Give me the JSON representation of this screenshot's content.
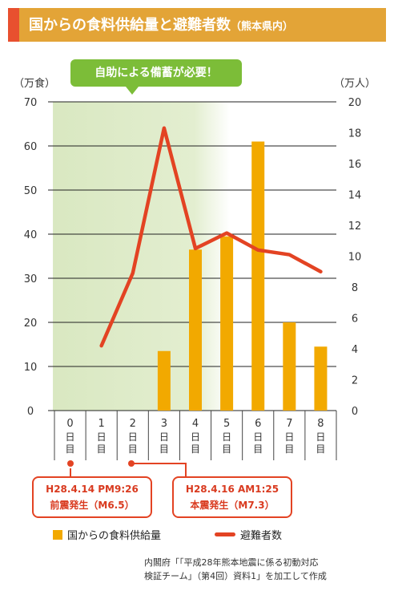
{
  "header": {
    "title": "国からの食料供給量と避難者数",
    "subtitle": "（熊本県内）"
  },
  "banner": {
    "text": "自助による備蓄が必要！"
  },
  "axes": {
    "left_unit": "（万食）",
    "right_unit": "（万人）"
  },
  "callouts": [
    {
      "line1": "H28.4.14 PM9:26",
      "line2": "前震発生（M6.5）"
    },
    {
      "line1": "H28.4.16 AM1:25",
      "line2": "本震発生（M7.3）"
    }
  ],
  "legend": {
    "bar_label": "国からの食料供給量",
    "line_label": "避難者数"
  },
  "footnote": {
    "line1": "内閣府「「平成28年熊本地震に係る初動対応",
    "line2": "検証チーム」（第4回）資料1」を加工して作成"
  },
  "colors": {
    "bar": "#f2a900",
    "line": "#e34323",
    "highlight": "#7cbd38",
    "title_bar": "#e3a437",
    "title_accent": "#e8502f"
  },
  "chart_data": {
    "type": "bar",
    "title": "国からの食料供給量と避難者数（熊本県内）",
    "categories": [
      "0日目",
      "1日目",
      "2日目",
      "3日目",
      "4日目",
      "5日目",
      "6日目",
      "7日目",
      "8日目"
    ],
    "category_numbers": [
      "0",
      "1",
      "2",
      "3",
      "4",
      "5",
      "6",
      "7",
      "8"
    ],
    "category_suffix": "日目",
    "left_ticks": [
      0,
      10,
      20,
      30,
      40,
      50,
      60,
      70
    ],
    "right_ticks": [
      0,
      2,
      4,
      6,
      8,
      10,
      12,
      14,
      16,
      18,
      20
    ],
    "ylim_left": [
      0,
      70
    ],
    "ylim_right": [
      0,
      20
    ],
    "grid": true,
    "legend_position": "bottom",
    "series": [
      {
        "name": "国からの食料供給量",
        "type": "bar",
        "axis": "left",
        "values": [
          null,
          null,
          null,
          13.5,
          36.5,
          39.5,
          61,
          20,
          14.5
        ]
      },
      {
        "name": "避難者数",
        "type": "line",
        "axis": "right",
        "values": [
          null,
          4.2,
          8.9,
          18.3,
          10.5,
          11.5,
          10.4,
          10.1,
          9.0
        ]
      }
    ],
    "highlight_range": {
      "from": "0日目",
      "to": "5日目"
    }
  }
}
